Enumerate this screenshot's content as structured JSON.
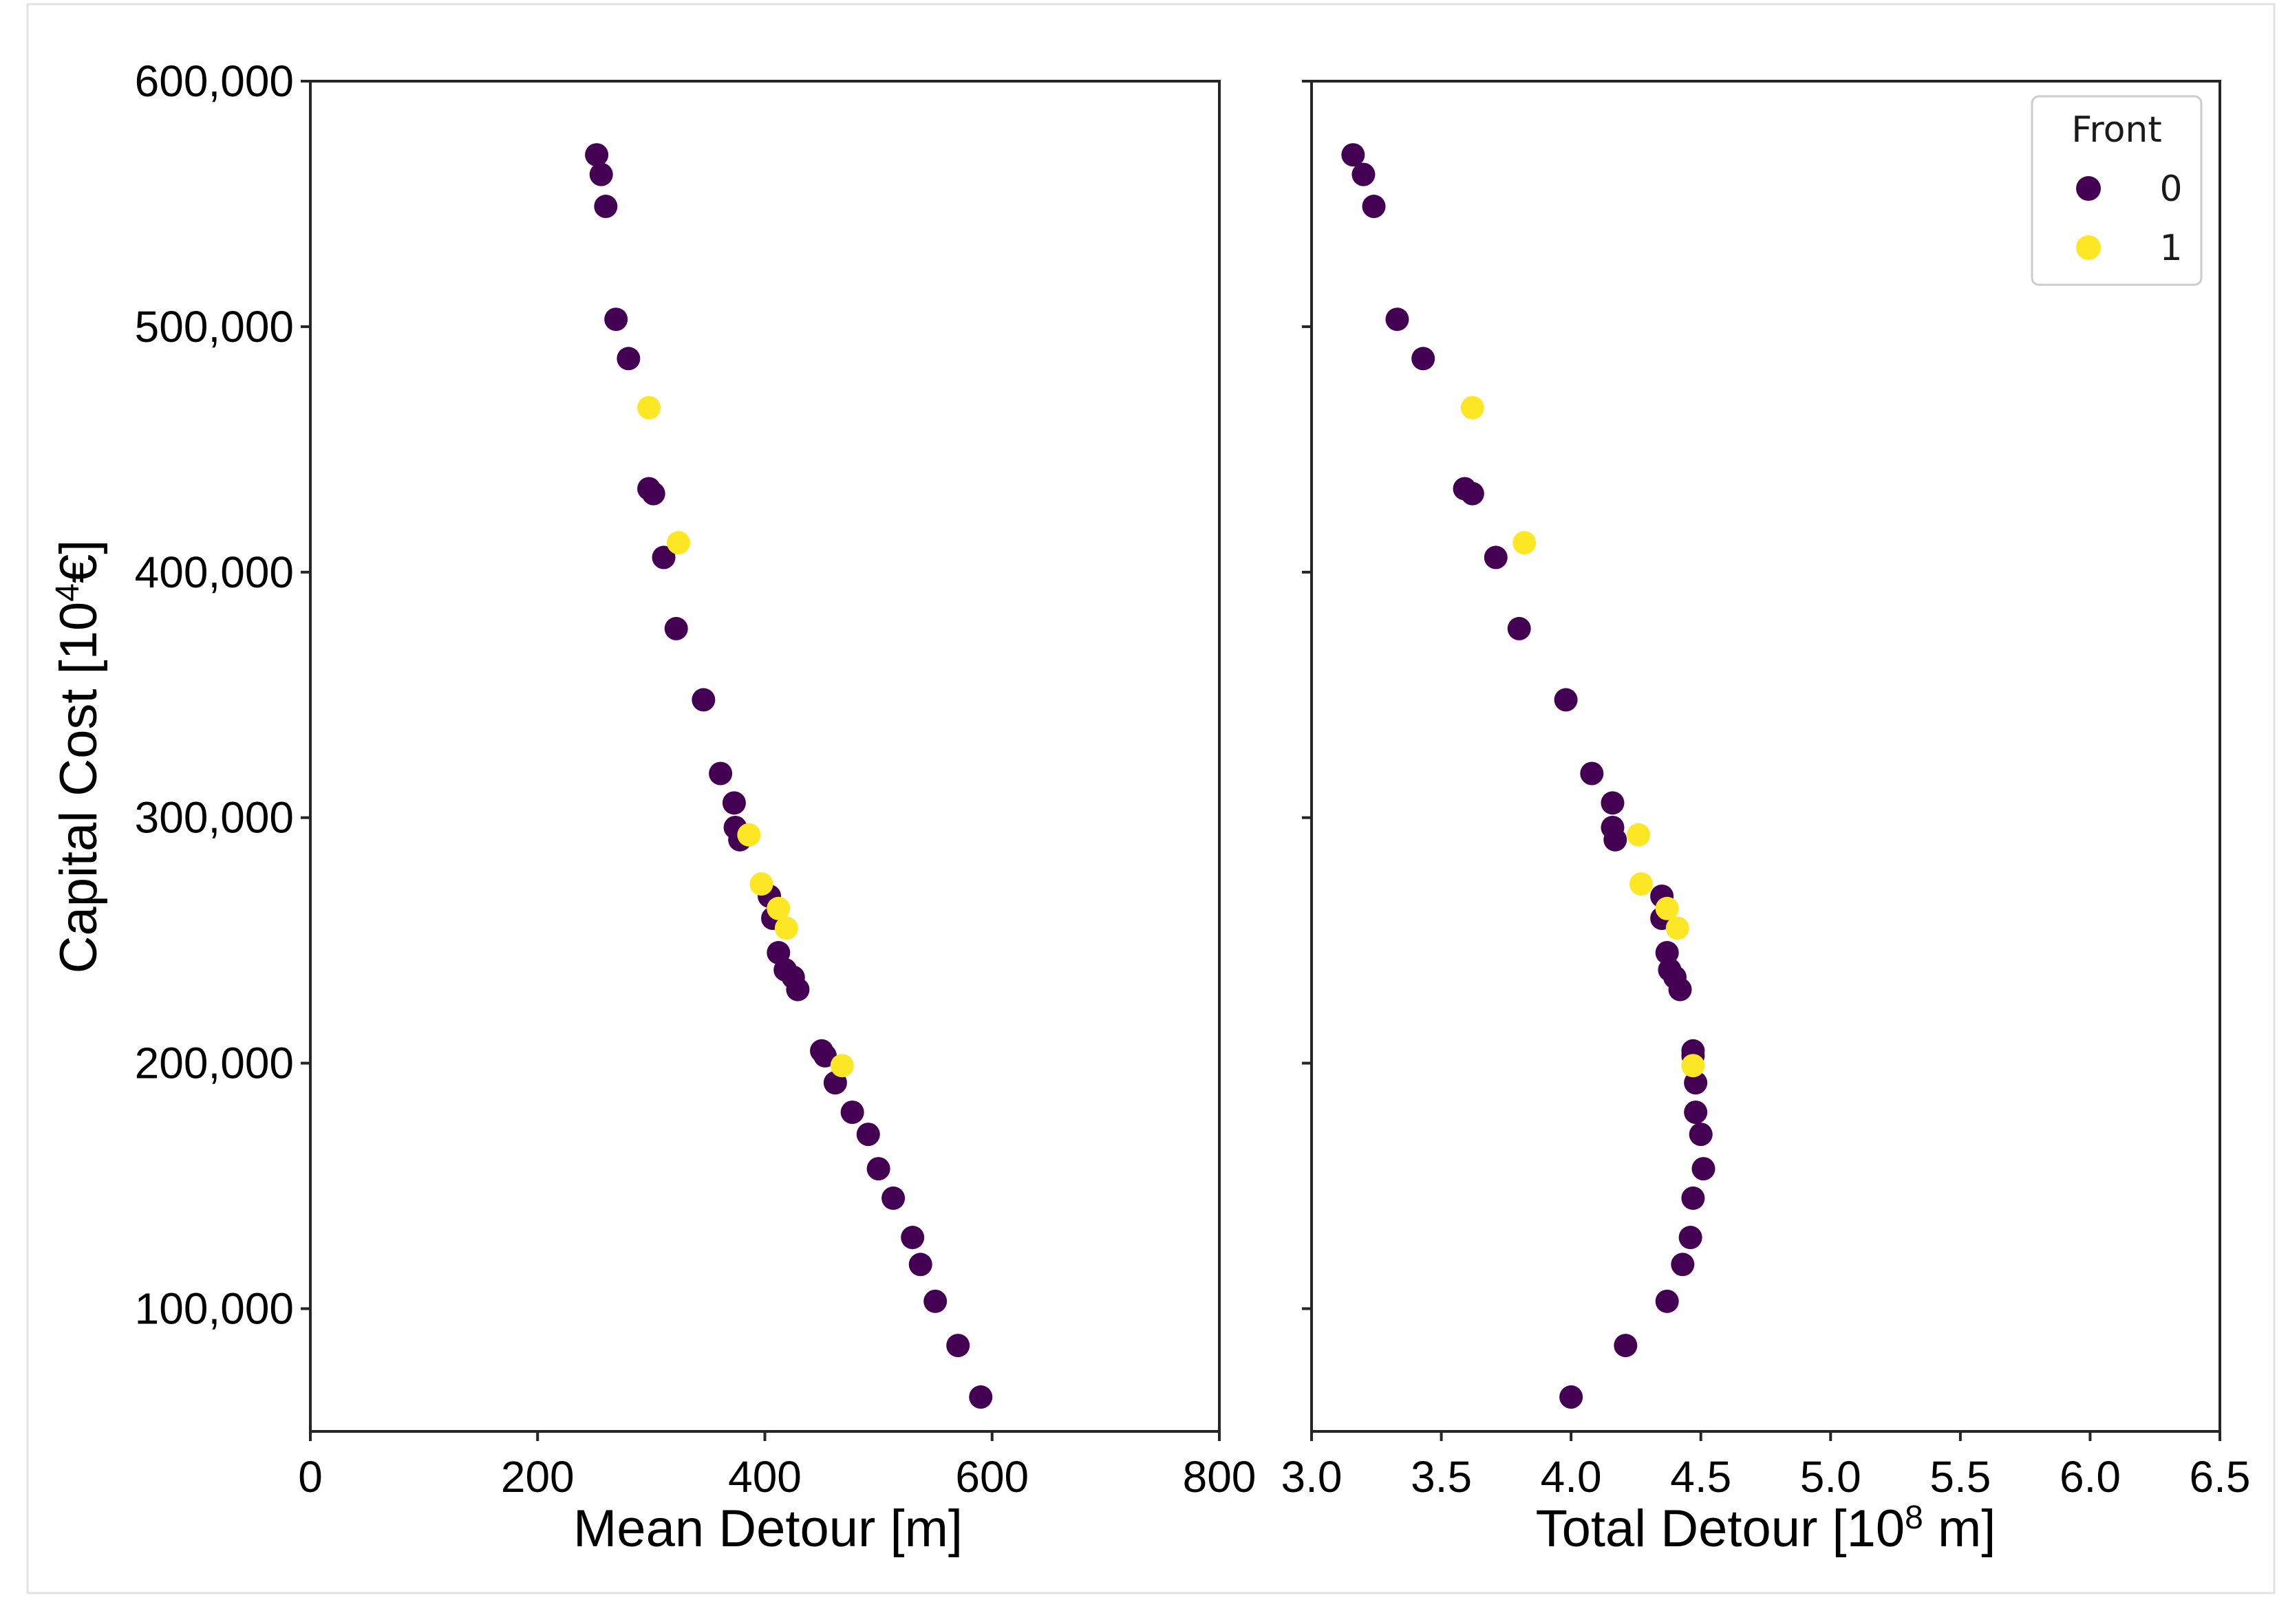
{
  "chart_data": [
    {
      "type": "scatter",
      "panel": "left",
      "xlabel": "Mean Detour [m]",
      "ylabel": "Capital Cost [10",
      "ylabel_sup": "4",
      "ylabel_tail": "€]",
      "xlim": [
        0,
        800
      ],
      "ylim": [
        50000,
        600000
      ],
      "xticks": [
        0,
        200,
        400,
        600,
        800
      ],
      "xtick_labels": [
        "0",
        "200",
        "400",
        "600",
        "800"
      ],
      "yticks": [
        100000,
        200000,
        300000,
        400000,
        500000,
        600000
      ],
      "ytick_labels": [
        "100,000",
        "200,000",
        "300,000",
        "400,000",
        "500,000",
        "600,000"
      ],
      "series": [
        {
          "name": "0",
          "color": "#440154",
          "points": [
            [
              252,
              570000
            ],
            [
              256,
              562000
            ],
            [
              260,
              549000
            ],
            [
              269,
              503000
            ],
            [
              280,
              487000
            ],
            [
              298,
              434000
            ],
            [
              302,
              432000
            ],
            [
              311,
              406000
            ],
            [
              322,
              377000
            ],
            [
              346,
              348000
            ],
            [
              361,
              318000
            ],
            [
              373,
              306000
            ],
            [
              374,
              296000
            ],
            [
              378,
              291000
            ],
            [
              404,
              268000
            ],
            [
              407,
              259000
            ],
            [
              412,
              245000
            ],
            [
              418,
              238000
            ],
            [
              425,
              235000
            ],
            [
              429,
              230000
            ],
            [
              450,
              205000
            ],
            [
              453,
              203000
            ],
            [
              462,
              192000
            ],
            [
              477,
              180000
            ],
            [
              491,
              171000
            ],
            [
              500,
              157000
            ],
            [
              513,
              145000
            ],
            [
              530,
              129000
            ],
            [
              537,
              118000
            ],
            [
              550,
              103000
            ],
            [
              570,
              85000
            ],
            [
              590,
              64000
            ]
          ]
        },
        {
          "name": "1",
          "color": "#fde725",
          "points": [
            [
              298,
              467000
            ],
            [
              324,
              412000
            ],
            [
              386,
              293000
            ],
            [
              397,
              273000
            ],
            [
              412,
              263000
            ],
            [
              419,
              255000
            ],
            [
              468,
              199000
            ]
          ]
        }
      ]
    },
    {
      "type": "scatter",
      "panel": "right",
      "xlabel": "Total Detour [10",
      "xlabel_sup": "8",
      "xlabel_tail": " m]",
      "xlim": [
        3.0,
        6.5
      ],
      "ylim": [
        50000,
        600000
      ],
      "xticks": [
        3.0,
        3.5,
        4.0,
        4.5,
        5.0,
        5.5,
        6.0,
        6.5
      ],
      "xtick_labels": [
        "3.0",
        "3.5",
        "4.0",
        "4.5",
        "5.0",
        "5.5",
        "6.0",
        "6.5"
      ],
      "yticks": [
        100000,
        200000,
        300000,
        400000,
        500000,
        600000
      ],
      "legend": {
        "title": "Front",
        "entries": [
          "0",
          "1"
        ],
        "location": "top-right"
      },
      "series": [
        {
          "name": "0",
          "color": "#440154",
          "points": [
            [
              3.16,
              570000
            ],
            [
              3.2,
              562000
            ],
            [
              3.24,
              549000
            ],
            [
              3.33,
              503000
            ],
            [
              3.43,
              487000
            ],
            [
              3.59,
              434000
            ],
            [
              3.62,
              432000
            ],
            [
              3.71,
              406000
            ],
            [
              3.8,
              377000
            ],
            [
              3.98,
              348000
            ],
            [
              4.08,
              318000
            ],
            [
              4.16,
              306000
            ],
            [
              4.16,
              296000
            ],
            [
              4.17,
              291000
            ],
            [
              4.35,
              268000
            ],
            [
              4.35,
              259000
            ],
            [
              4.37,
              245000
            ],
            [
              4.38,
              238000
            ],
            [
              4.4,
              235000
            ],
            [
              4.42,
              230000
            ],
            [
              4.47,
              205000
            ],
            [
              4.47,
              203000
            ],
            [
              4.48,
              192000
            ],
            [
              4.48,
              180000
            ],
            [
              4.5,
              171000
            ],
            [
              4.51,
              157000
            ],
            [
              4.47,
              145000
            ],
            [
              4.46,
              129000
            ],
            [
              4.43,
              118000
            ],
            [
              4.37,
              103000
            ],
            [
              4.21,
              85000
            ],
            [
              4.0,
              64000
            ]
          ]
        },
        {
          "name": "1",
          "color": "#fde725",
          "points": [
            [
              3.62,
              467000
            ],
            [
              3.82,
              412000
            ],
            [
              4.26,
              293000
            ],
            [
              4.27,
              273000
            ],
            [
              4.37,
              263000
            ],
            [
              4.41,
              255000
            ],
            [
              4.47,
              199000
            ]
          ]
        }
      ]
    }
  ]
}
